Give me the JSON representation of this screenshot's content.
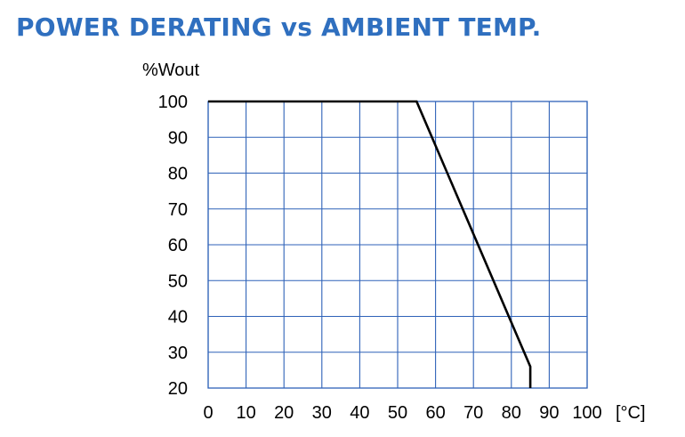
{
  "chart_data": {
    "type": "line",
    "title": "POWER DERATING vs AMBIENT TEMP.",
    "ylabel": "%Wout",
    "xlabel": "[°C]",
    "xlim": [
      0,
      100
    ],
    "ylim": [
      20,
      100
    ],
    "x_ticks": [
      0,
      10,
      20,
      30,
      40,
      50,
      60,
      70,
      80,
      90,
      100
    ],
    "y_ticks": [
      20,
      30,
      40,
      50,
      60,
      70,
      80,
      90,
      100
    ],
    "grid": true,
    "colors": {
      "title": "#2f6fbf",
      "grid": "#2f62b8",
      "line": "#000000"
    },
    "series": [
      {
        "x": [
          0,
          55,
          85,
          85
        ],
        "y": [
          100,
          100,
          26,
          20
        ]
      }
    ]
  }
}
